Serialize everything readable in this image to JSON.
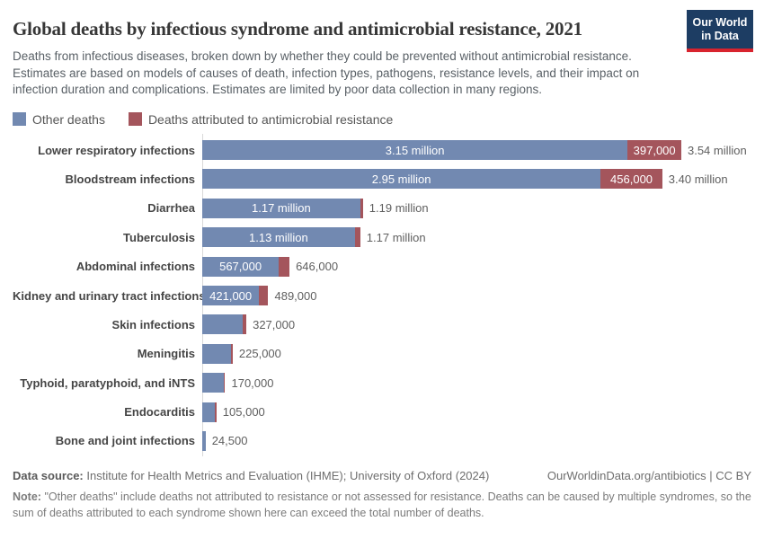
{
  "header": {
    "title": "Global deaths by infectious syndrome and antimicrobial resistance, 2021",
    "subtitle": "Deaths from infectious diseases, broken down by whether they could be prevented without antimicrobial resistance. Estimates are based on models of causes of death, infection types, pathogens, resistance levels, and their impact on infection duration and complications. Estimates are limited by poor data collection in many regions.",
    "logo": {
      "line1": "Our World",
      "line2": "in Data"
    }
  },
  "legend": [
    {
      "label": "Other deaths",
      "color": "#7289b1"
    },
    {
      "label": "Deaths attributed to antimicrobial resistance",
      "color": "#a4555c"
    }
  ],
  "chart_data": {
    "type": "bar",
    "orientation": "horizontal",
    "stacked": true,
    "title": "Global deaths by infectious syndrome and antimicrobial resistance, 2021",
    "unit": "deaths, millions",
    "xmax_millions": 3.547,
    "grid": false,
    "categories": [
      "Lower respiratory infections",
      "Bloodstream infections",
      "Diarrhea",
      "Tuberculosis",
      "Abdominal infections",
      "Kidney and urinary tract infections",
      "Skin infections",
      "Meningitis",
      "Typhoid, paratyphoid, and iNTS",
      "Endocarditis",
      "Bone and joint infections"
    ],
    "series": [
      {
        "name": "Other deaths",
        "color": "#7289b1",
        "values": [
          3.15,
          2.95,
          1.17,
          1.13,
          0.567,
          0.421,
          0.297,
          0.21,
          0.162,
          0.095,
          0.0245
        ]
      },
      {
        "name": "Deaths attributed to antimicrobial resistance",
        "color": "#a4555c",
        "values": [
          0.397,
          0.456,
          0.02,
          0.04,
          0.079,
          0.068,
          0.03,
          0.015,
          0.008,
          0.01,
          0
        ]
      }
    ],
    "segment_labels_other": [
      "3.15 million",
      "2.95 million",
      "1.17 million",
      "1.13 million",
      "567,000",
      "421,000",
      "",
      "",
      "",
      "",
      ""
    ],
    "segment_labels_amr": [
      "397,000",
      "456,000",
      "",
      "",
      "",
      "",
      "",
      "",
      "",
      "",
      ""
    ],
    "totals": [
      "3.54 million",
      "3.40 million",
      "1.19 million",
      "1.17 million",
      "646,000",
      "489,000",
      "327,000",
      "225,000",
      "170,000",
      "105,000",
      "24,500"
    ]
  },
  "footer": {
    "source_label": "Data source:",
    "source_text": "Institute for Health Metrics and Evaluation (IHME); University of Oxford (2024)",
    "link_text": "OurWorldinData.org/antibiotics | CC BY",
    "note_label": "Note:",
    "note_text": "\"Other deaths\" include deaths not attributed to resistance or not assessed for resistance. Deaths can be caused by multiple syndromes, so the sum of deaths attributed to each syndrome shown here can exceed the total number of deaths."
  },
  "colors": {
    "other": "#7289b1",
    "amr": "#a4555c",
    "logo_navy": "#1d3d63",
    "logo_red": "#d8232e",
    "axis": "#d9d9d9"
  }
}
